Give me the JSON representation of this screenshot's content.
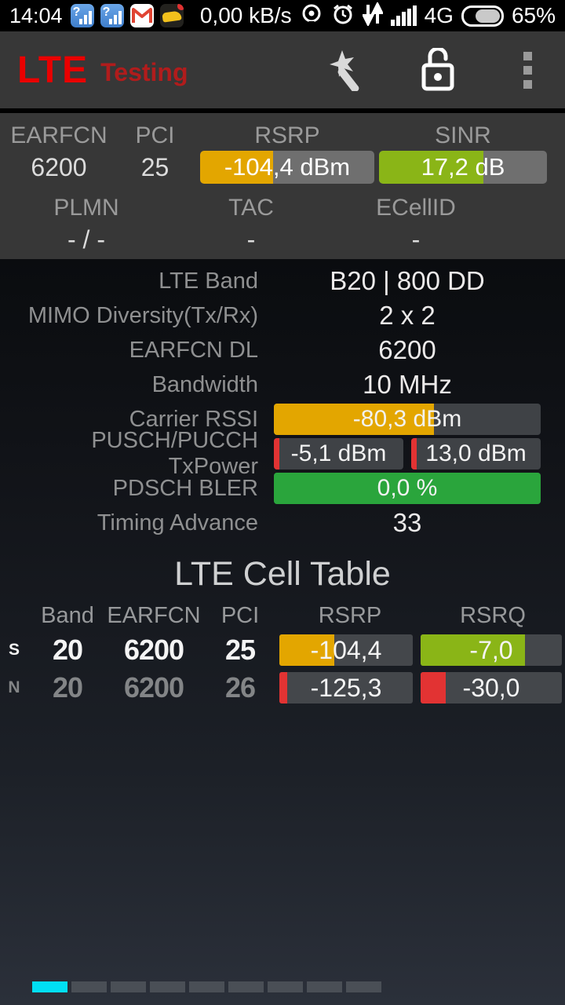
{
  "status_bar": {
    "time": "14:04",
    "traffic": "0,00 kB/s",
    "network_type": "4G",
    "battery_percent": "65%",
    "battery_level": 65,
    "left_icons": [
      "app-signal-icon",
      "app-signal-icon",
      "gmail-icon",
      "game-icon"
    ],
    "right_icons": [
      "location-icon",
      "alarm-icon",
      "data-arrows-icon",
      "signal-bars-icon",
      "battery-icon"
    ]
  },
  "app_bar": {
    "title": "LTE",
    "subtitle": "Testing",
    "title_color": "#ea0000",
    "subtitle_color": "#b11c1c",
    "icons": [
      "magic-wand-icon",
      "lock-open-icon",
      "overflow-menu-icon"
    ]
  },
  "summary": {
    "earfcn": {
      "label": "EARFCN",
      "value": "6200"
    },
    "pci": {
      "label": "PCI",
      "value": "25"
    },
    "rsrp": {
      "label": "RSRP",
      "value": "-104,4 dBm",
      "fill": 42,
      "color": "#e3a600"
    },
    "sinr": {
      "label": "SINR",
      "value": "17,2 dB",
      "fill": 62,
      "color": "#8ab517"
    },
    "plmn": {
      "label": "PLMN",
      "value": "- / -"
    },
    "tac": {
      "label": "TAC",
      "value": "-"
    },
    "ecellid": {
      "label": "ECellID",
      "value": "-"
    }
  },
  "details": [
    {
      "type": "text",
      "label": "LTE Band",
      "value": "B20 | 800 DD"
    },
    {
      "type": "text",
      "label": "MIMO Diversity(Tx/Rx)",
      "value": "2 x 2"
    },
    {
      "type": "text",
      "label": "EARFCN DL",
      "value": "6200"
    },
    {
      "type": "text",
      "label": "Bandwidth",
      "value": "10 MHz"
    },
    {
      "type": "bar",
      "label": "Carrier RSSI",
      "value": "-80,3 dBm",
      "fill": 60,
      "color": "#e3a600"
    },
    {
      "type": "dualbar",
      "label": "PUSCH/PUCCH TxPower",
      "values": [
        "-5,1 dBm",
        "13,0 dBm"
      ],
      "fills": [
        4,
        4
      ],
      "color": "#e23333"
    },
    {
      "type": "bar",
      "label": "PDSCH BLER",
      "value": "0,0 %",
      "fill": 100,
      "color": "#2aa53c"
    },
    {
      "type": "text",
      "label": "Timing Advance",
      "value": "33"
    }
  ],
  "cell_table": {
    "title": "LTE Cell Table",
    "headers": [
      "Band",
      "EARFCN",
      "PCI",
      "RSRP",
      "RSRQ"
    ],
    "rows": [
      {
        "tag": "S",
        "band": "20",
        "earfcn": "6200",
        "pci": "25",
        "rsrp": {
          "value": "-104,4",
          "fill": 41,
          "color": "#e3a600"
        },
        "rsrq": {
          "value": "-7,0",
          "fill": 74,
          "color": "#8ab517"
        },
        "serving": true
      },
      {
        "tag": "N",
        "band": "20",
        "earfcn": "6200",
        "pci": "26",
        "rsrp": {
          "value": "-125,3",
          "fill": 6,
          "color": "#e23333"
        },
        "rsrq": {
          "value": "-30,0",
          "fill": 18,
          "color": "#e23333"
        },
        "serving": false
      }
    ]
  },
  "pager": {
    "count": 9,
    "active_index": 0,
    "active_color": "#00dff4"
  }
}
